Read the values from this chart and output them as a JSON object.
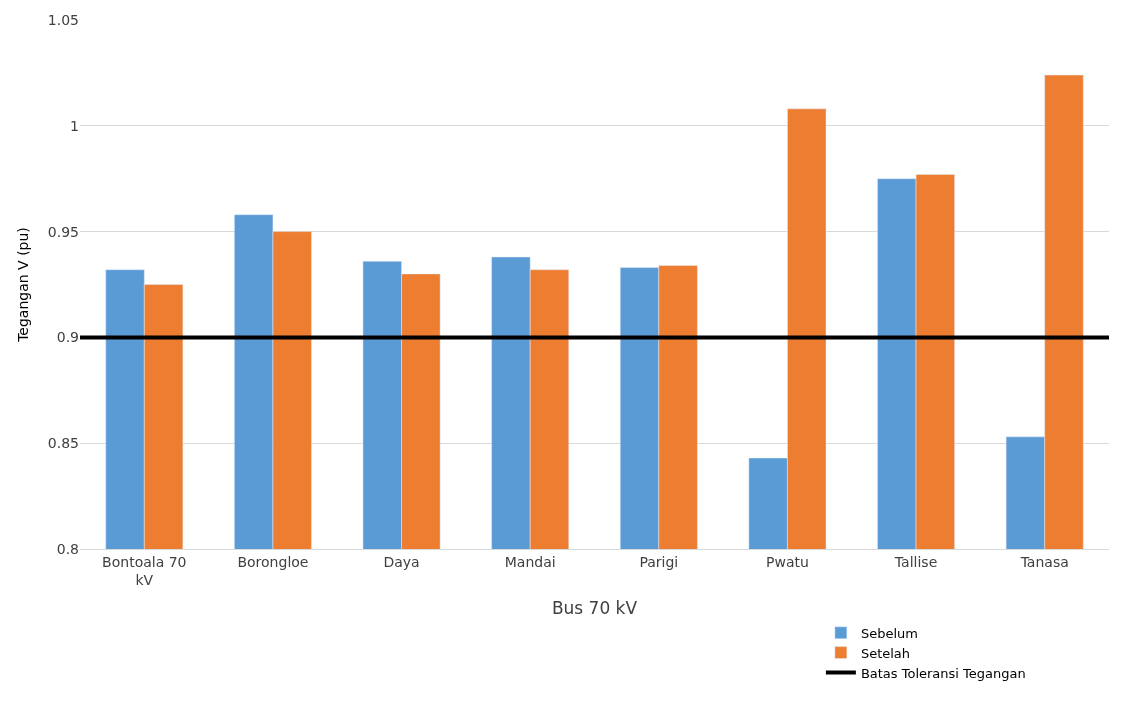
{
  "chart_data": {
    "type": "bar",
    "xlabel": "Bus 70 kV",
    "ylabel": "Tegangan V (pu)",
    "categories": [
      "Bontoala 70 kV",
      "Borongloe",
      "Daya",
      "Mandai",
      "Parigi",
      "Pwatu",
      "Tallise",
      "Tanasa"
    ],
    "series": [
      {
        "name": "Sebelum",
        "color": "#5b9bd5",
        "values": [
          0.932,
          0.958,
          0.936,
          0.938,
          0.933,
          0.843,
          0.975,
          0.853
        ]
      },
      {
        "name": "Setelah",
        "color": "#ed7d31",
        "values": [
          0.925,
          0.95,
          0.93,
          0.932,
          0.934,
          1.008,
          0.977,
          1.024
        ]
      }
    ],
    "ref_lines": [
      {
        "axis": "y",
        "value": 0.9,
        "label": "Batas Toleransi Tegangan",
        "color": "#000000",
        "line_style": "solid"
      }
    ],
    "ylim": [
      0.8,
      1.05
    ],
    "yticks": [
      0.8,
      0.85,
      0.9,
      0.95,
      1,
      1.05
    ],
    "grid": "y",
    "legend": "bottom right"
  }
}
